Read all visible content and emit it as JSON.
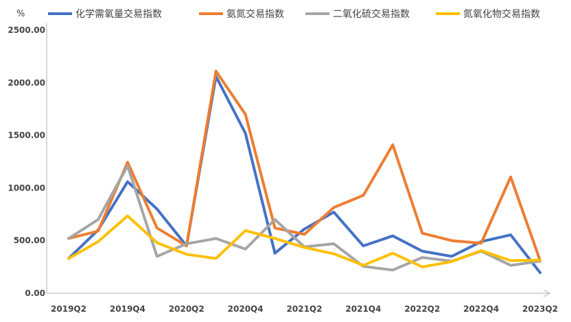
{
  "chart_data": {
    "type": "line",
    "ylabel": "%",
    "ylim": [
      0,
      2500
    ],
    "yticks": [
      "0.00",
      "500.00",
      "1000.00",
      "1500.00",
      "2000.00",
      "2500.00"
    ],
    "categories": [
      "2019Q2",
      "2019Q3",
      "2019Q4",
      "2020Q1",
      "2020Q2",
      "2020Q3",
      "2020Q4",
      "2021Q1",
      "2021Q2",
      "2021Q3",
      "2021Q4",
      "2022Q1",
      "2022Q2",
      "2022Q3",
      "2022Q4",
      "2023Q1",
      "2023Q2"
    ],
    "x_tick_labels": [
      "2019Q2",
      "2019Q4",
      "2020Q2",
      "2020Q4",
      "2021Q2",
      "2021Q4",
      "2022Q2",
      "2022Q4",
      "2023Q2"
    ],
    "legend_position": "top",
    "grid": false,
    "series": [
      {
        "name": "化学需氧量交易指数",
        "color": "#4472C4",
        "values": [
          330,
          600,
          1060,
          800,
          450,
          2060,
          1520,
          380,
          610,
          770,
          450,
          545,
          400,
          350,
          490,
          555,
          195
        ]
      },
      {
        "name": "氨氮交易指数",
        "color": "#ED7D31",
        "values": [
          520,
          590,
          1245,
          620,
          450,
          2110,
          1700,
          620,
          560,
          815,
          930,
          1410,
          570,
          500,
          475,
          1105,
          310
        ]
      },
      {
        "name": "二氧化硫交易指数",
        "color": "#A5A5A5",
        "values": [
          520,
          700,
          1210,
          350,
          470,
          520,
          420,
          700,
          440,
          470,
          255,
          220,
          340,
          305,
          400,
          265,
          305
        ]
      },
      {
        "name": "氮氧化物交易指数",
        "color": "#FFC000",
        "values": [
          330,
          490,
          735,
          480,
          370,
          330,
          595,
          520,
          435,
          375,
          265,
          380,
          250,
          300,
          405,
          310,
          315
        ]
      }
    ]
  }
}
